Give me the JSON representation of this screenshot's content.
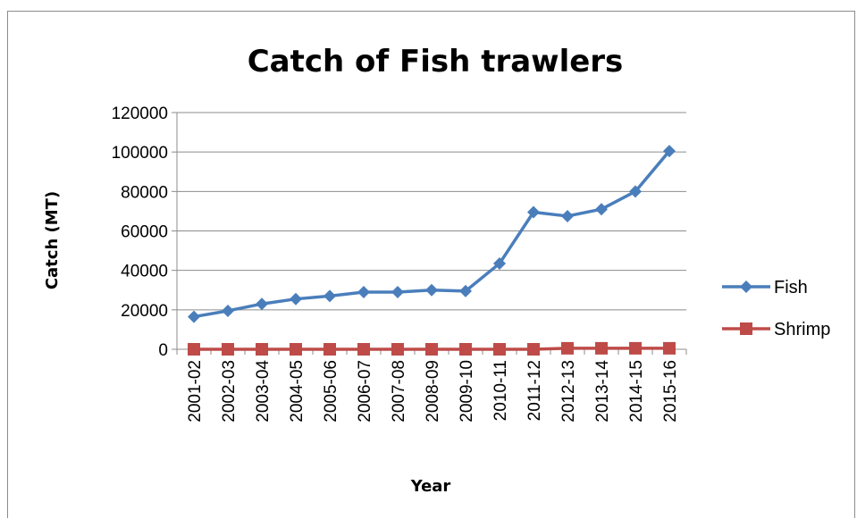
{
  "chart_data": {
    "type": "line",
    "title": "Catch of Fish trawlers",
    "xlabel": "Year",
    "ylabel": "Catch (MT)",
    "ylim": [
      0,
      120000
    ],
    "yticks": [
      0,
      20000,
      40000,
      60000,
      80000,
      100000,
      120000
    ],
    "categories": [
      "2001-02",
      "2002-03",
      "2003-04",
      "2004-05",
      "2005-06",
      "2006-07",
      "2007-08",
      "2008-09",
      "2009-10",
      "2010-11",
      "2011-12",
      "2012-13",
      "2013-14",
      "2014-15",
      "2015-16"
    ],
    "grid": true,
    "legend_position": "right",
    "series": [
      {
        "name": "Fish",
        "color": "#4a7ebb",
        "marker": "diamond",
        "values": [
          16500,
          19500,
          23000,
          25500,
          27000,
          29000,
          29000,
          30000,
          29500,
          43500,
          69500,
          67500,
          71000,
          80000,
          100500
        ]
      },
      {
        "name": "Shrimp",
        "color": "#be4b48",
        "marker": "square",
        "values": [
          0,
          0,
          0,
          0,
          0,
          0,
          0,
          0,
          0,
          0,
          0,
          500,
          500,
          500,
          500
        ]
      }
    ]
  }
}
